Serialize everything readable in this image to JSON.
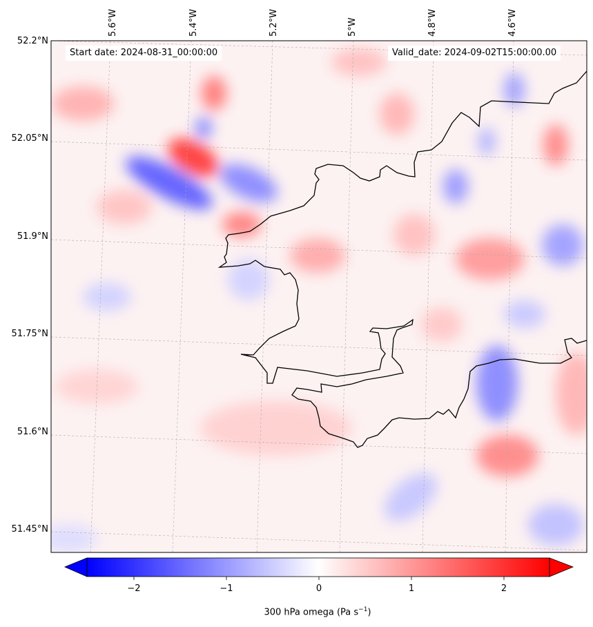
{
  "map": {
    "start_date": "Start date: 2024-08-31_00:00:00",
    "valid_date": "Valid_date: 2024-09-02T15:00:00.00",
    "lon_labels": [
      "5.6°W",
      "5.4°W",
      "5.2°W",
      "5°W",
      "4.8°W",
      "4.6°W"
    ],
    "lat_labels": [
      "52.2°N",
      "52.05°N",
      "51.9°N",
      "51.75°N",
      "51.6°N",
      "51.45°N"
    ]
  },
  "colorbar": {
    "ticks": [
      "−2",
      "−1",
      "0",
      "1",
      "2"
    ],
    "label": "300 hPa omega (Pa s",
    "label_sup": "−1",
    "label_tail": ")",
    "colormap": "bwr",
    "min_color": "#0000ff",
    "mid_color": "#ffffff",
    "max_color": "#ff0000"
  }
}
